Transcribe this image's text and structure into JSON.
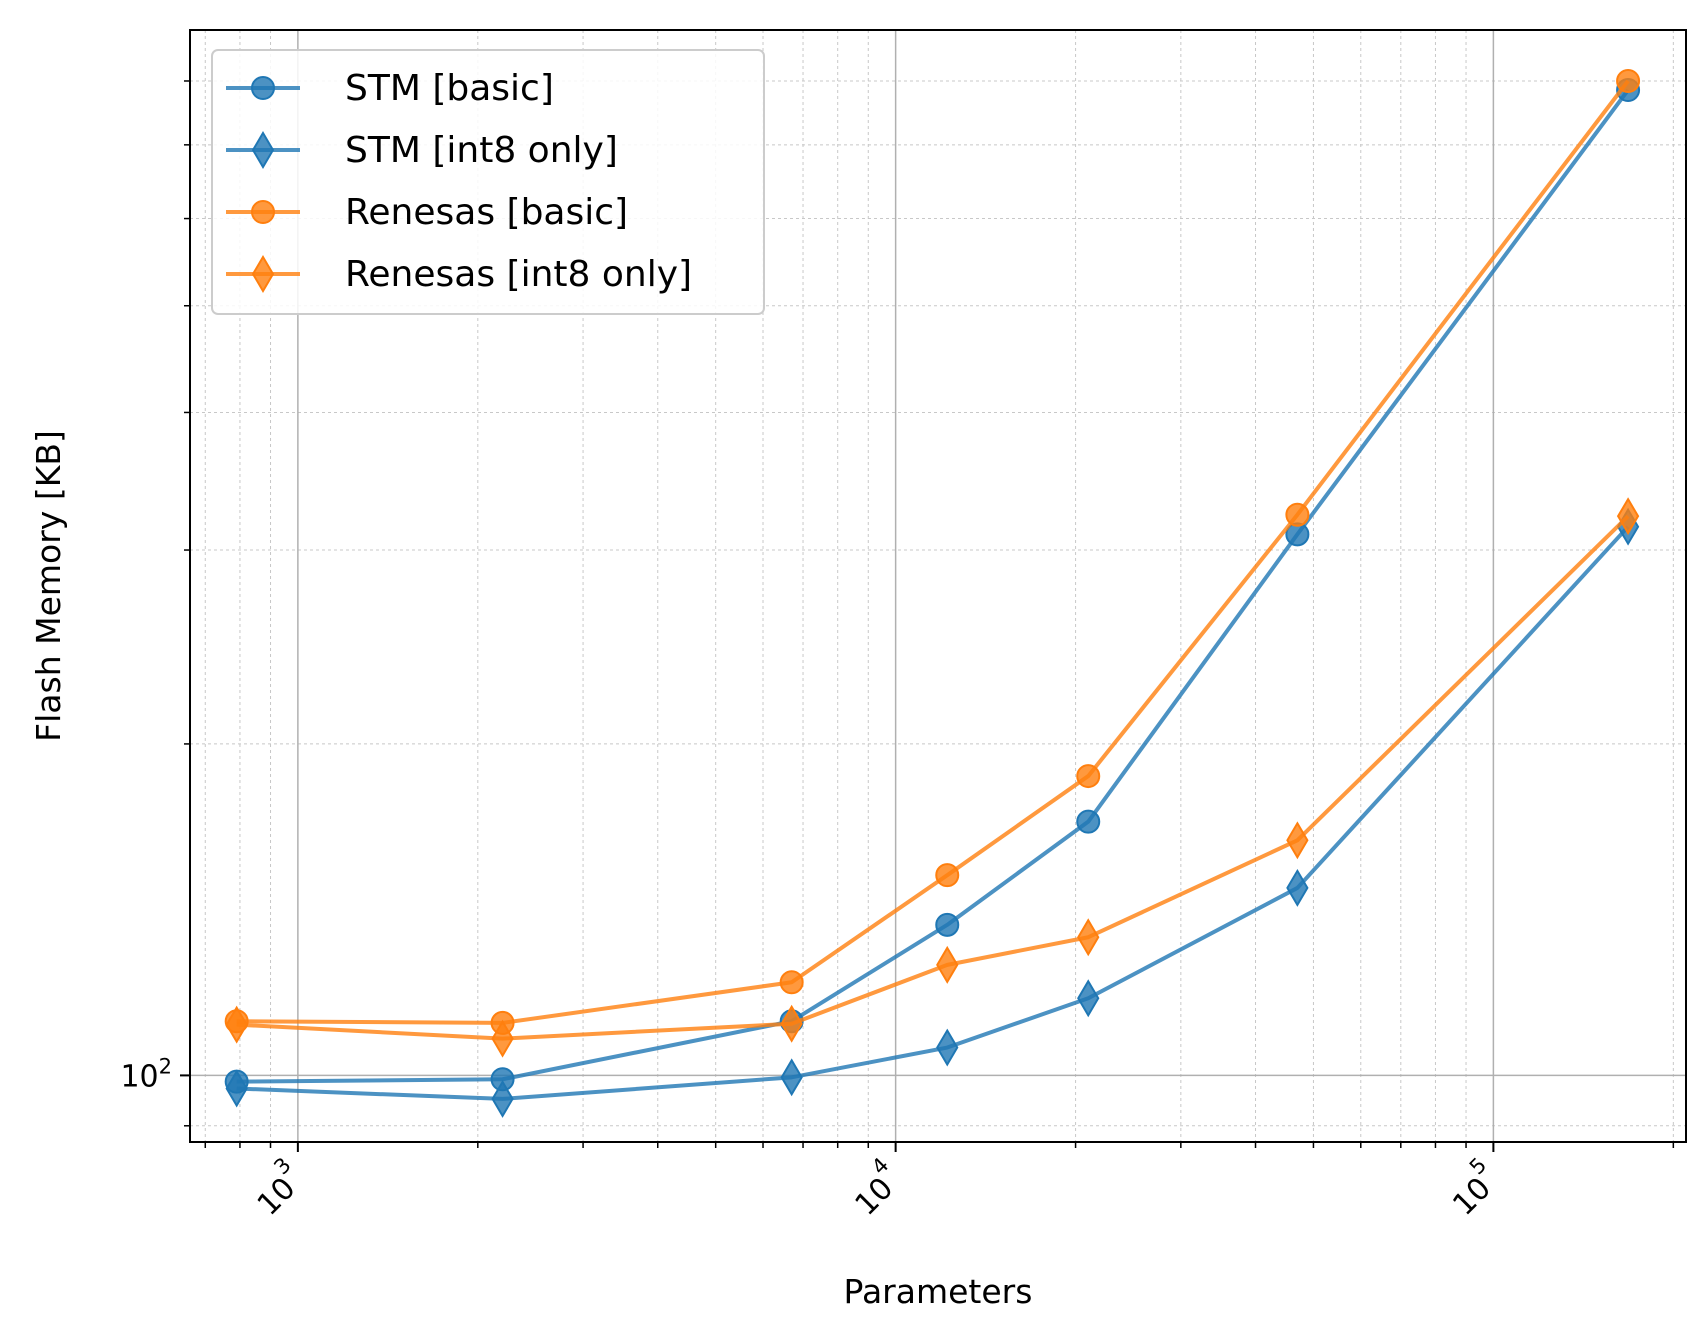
{
  "chart_data": {
    "type": "line",
    "title": "",
    "xlabel": "Parameters",
    "ylabel": "Flash Memory [KB]",
    "xscale": "log",
    "yscale": "log",
    "xlim": [
      660,
      210000
    ],
    "ylim": [
      87,
      890
    ],
    "x_ticks": [
      {
        "base": "10",
        "exp": "3",
        "value": 1000
      },
      {
        "base": "10",
        "exp": "4",
        "value": 10000
      },
      {
        "base": "10",
        "exp": "5",
        "value": 100000
      }
    ],
    "y_ticks": [
      {
        "base": "10",
        "exp": "2",
        "value": 100
      }
    ],
    "grid": true,
    "legend_position": "upper-left",
    "x": [
      790,
      2200,
      6700,
      12200,
      21000,
      47000,
      168000
    ],
    "series": [
      {
        "name": "STM [basic]",
        "color": "#1f77b4",
        "marker": "circle",
        "values": [
          98.7,
          99.2,
          112,
          137,
          170,
          310,
          785
        ]
      },
      {
        "name": "STM [int8 only]",
        "color": "#1f77b4",
        "marker": "diamond",
        "values": [
          97.3,
          95.2,
          99.6,
          106,
          117.5,
          148,
          315
        ]
      },
      {
        "name": "Renesas [basic]",
        "color": "#ff7f0e",
        "marker": "circle",
        "values": [
          112,
          111.6,
          121.5,
          152,
          187,
          323,
          800
        ]
      },
      {
        "name": "Renesas [int8 only]",
        "color": "#ff7f0e",
        "marker": "diamond",
        "values": [
          111.2,
          108,
          111.4,
          126,
          133.5,
          163.5,
          322
        ]
      }
    ]
  }
}
